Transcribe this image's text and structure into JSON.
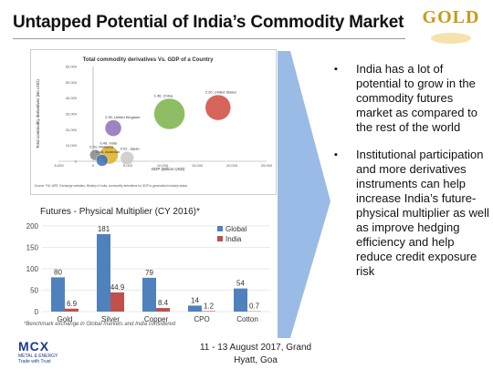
{
  "slide": {
    "title": "Untapped Potential of India’s Commodity Market",
    "logo_text": "GOLD",
    "logo_subtext": "",
    "event": "11 - 13 August 2017, Grand Hyatt, Goa"
  },
  "bullets": [
    "India has a lot of potential to grow in the commodity futures market as compared to the rest of the world",
    "Institutional participation and more derivatives instruments can help increase India’s future-physical multiplier as well as improve hedging efficiency and help reduce credit exposure risk"
  ],
  "footnote": "*Benchmark exchange in Global markets and India considered",
  "mcx": {
    "name": "MCX",
    "sub": "METAL & ENERGY",
    "tagline": "Trade with Trust"
  },
  "chart_data": [
    {
      "type": "scatter",
      "title": "Total commodity derivatives Vs. GDP of a Country",
      "xlabel": "GDP (Billion USD)",
      "ylabel": "Total commodity derivatives (Bn USD)",
      "x_ticks": [
        "-5,000",
        "0",
        "5,000",
        "10,000",
        "15,000",
        "20,000",
        "25,000"
      ],
      "y_ticks": [
        "0",
        "10,000",
        "20,000",
        "30,000",
        "40,000",
        "50,000",
        "60,000"
      ],
      "xlim": [
        -5000,
        25000
      ],
      "ylim": [
        0,
        60000
      ],
      "points": [
        {
          "label": "2.90, United Kingdom",
          "x": 2900,
          "y": 21000,
          "size": 0.5,
          "color": "#8e6fb8"
        },
        {
          "label": "1.46, China",
          "x": 11000,
          "y": 30000,
          "size": 1.3,
          "color": "#7bb34a"
        },
        {
          "label": "2.20, United States",
          "x": 18000,
          "y": 34000,
          "size": 1.0,
          "color": "#d04a3c"
        },
        {
          "label": "0.49, India",
          "x": 2300,
          "y": 4000,
          "size": 0.6,
          "color": "#e0b020"
        },
        {
          "label": "0.51, Japan",
          "x": 4900,
          "y": 2000,
          "size": 0.35,
          "color": "#c9c9c9"
        },
        {
          "label": "0.51, Malaysia",
          "x": 300,
          "y": 4000,
          "size": 0.2,
          "color": "#888888"
        },
        {
          "label": "0.05, Australia",
          "x": 1300,
          "y": 600,
          "size": 0.25,
          "color": "#3b6fb6"
        }
      ],
      "source": "Source: FIA, WFE, Exchange websites, Ministry of India, commodity derivatives for GDP to generalized industry status"
    },
    {
      "type": "bar",
      "title": "Futures - Physical Multiplier (CY 2016)*",
      "categories": [
        "Gold",
        "Silver",
        "Copper",
        "CPO",
        "Cotton"
      ],
      "series": [
        {
          "name": "Global",
          "values": [
            80,
            181,
            79,
            14,
            54
          ],
          "labels": [
            "80",
            "181",
            "79",
            "14",
            "54"
          ],
          "color": "#4f81bd"
        },
        {
          "name": "India",
          "values": [
            6.9,
            44.9,
            8.4,
            1.2,
            0.7
          ],
          "labels": [
            "6.9",
            "44.9",
            "8.4",
            "1.2",
            "0.7"
          ],
          "color": "#c0504d"
        }
      ],
      "y_ticks": [
        "0",
        "50",
        "100",
        "150",
        "200"
      ],
      "ylim": [
        0,
        200
      ]
    }
  ]
}
